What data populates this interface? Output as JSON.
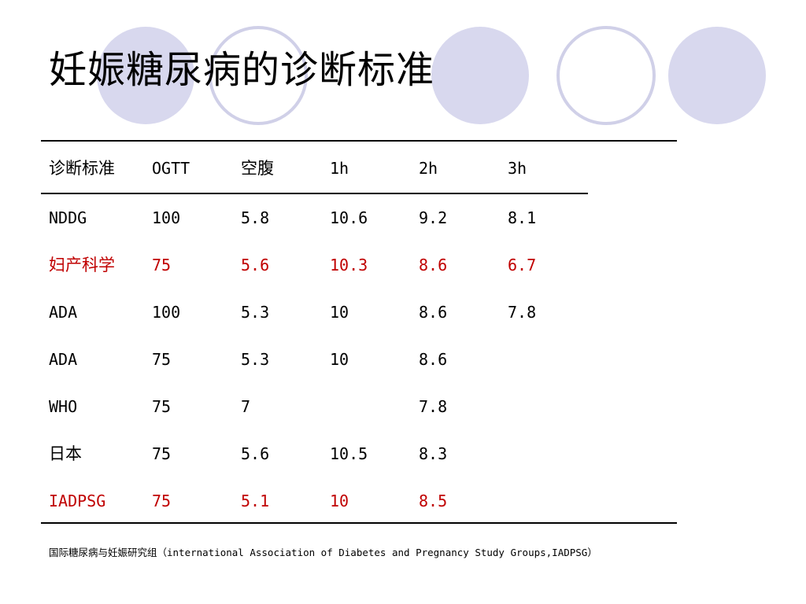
{
  "slide": {
    "title": "妊娠糖尿病的诊断标准",
    "footnote": "国际糖尿病与妊娠研究组（international Association of Diabetes and Pregnancy Study Groups,IADPSG）",
    "colors": {
      "circle_fill": "#d8d8ee",
      "circle_stroke": "#d0d0e8",
      "highlight_text": "#c00000",
      "text": "#000000"
    }
  },
  "table": {
    "headers": [
      "诊断标准",
      "OGTT",
      "空腹",
      "1h",
      "2h",
      "3h"
    ],
    "rows": [
      {
        "cells": [
          "NDDG",
          "100",
          "5.8",
          "10.6",
          "9.2",
          "8.1"
        ],
        "highlight": false
      },
      {
        "cells": [
          "妇产科学",
          "75",
          "5.6",
          "10.3",
          "8.6",
          "6.7"
        ],
        "highlight": true
      },
      {
        "cells": [
          "ADA",
          "100",
          "5.3",
          "10",
          "8.6",
          "7.8"
        ],
        "highlight": false
      },
      {
        "cells": [
          "ADA",
          "75",
          "5.3",
          "10",
          "8.6",
          ""
        ],
        "highlight": false
      },
      {
        "cells": [
          "WHO",
          "75",
          "7",
          "",
          "7.8",
          ""
        ],
        "highlight": false
      },
      {
        "cells": [
          "日本",
          "75",
          "5.6",
          "10.5",
          "8.3",
          ""
        ],
        "highlight": false
      },
      {
        "cells": [
          "IADPSG",
          "75",
          "5.1",
          "10",
          "8.5",
          ""
        ],
        "highlight": true
      }
    ]
  }
}
